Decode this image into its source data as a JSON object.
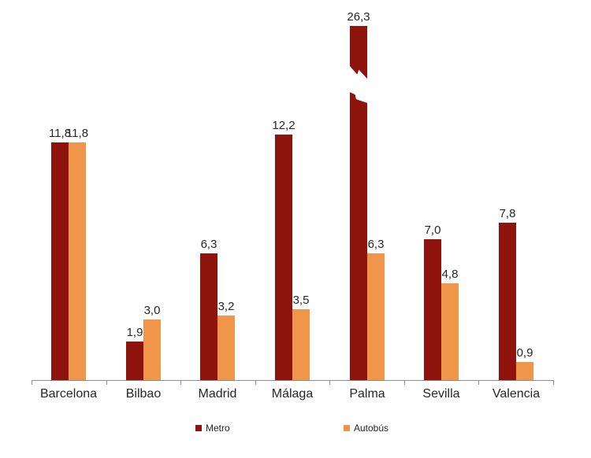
{
  "chart_data": {
    "type": "bar",
    "title": "",
    "xlabel": "",
    "ylabel": "",
    "categories": [
      "Barcelona",
      "Bilbao",
      "Madrid",
      "Málaga",
      "Palma",
      "Sevilla",
      "Valencia"
    ],
    "series": [
      {
        "name": "Metro",
        "color": "#8F130D",
        "values": [
          11.8,
          1.9,
          6.3,
          12.2,
          26.3,
          7.0,
          7.8
        ],
        "value_labels": [
          "11,8",
          "1,9",
          "6,3",
          "12,2",
          "26,3",
          "7,0",
          "7,8"
        ]
      },
      {
        "name": "Autobús",
        "color": "#F0964A",
        "values": [
          11.8,
          3.0,
          3.2,
          3.5,
          6.3,
          4.8,
          0.9
        ],
        "value_labels": [
          "11,8",
          "3,0",
          "3,2",
          "3,5",
          "6,3",
          "4,8",
          "0,9"
        ]
      }
    ],
    "ylim": [
      0,
      13
    ],
    "grid": false,
    "y_axis_shown": false,
    "legend_position": "bottom",
    "axis_break": {
      "series": "Metro",
      "category": "Palma",
      "full_value": 26.3,
      "note": "bar truncated with torn break marks"
    },
    "axis_color": "#8c8c8c",
    "label_color": "#262626"
  }
}
